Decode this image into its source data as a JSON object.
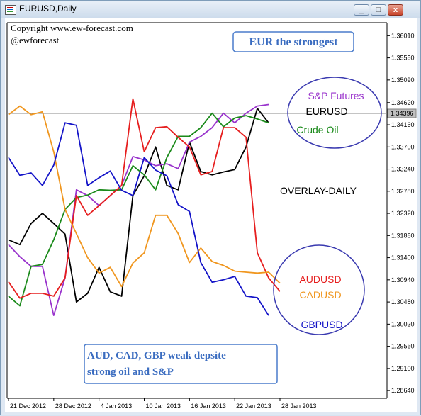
{
  "window": {
    "title": "EURUSD,Daily",
    "buttons": [
      "_",
      "□",
      "x"
    ]
  },
  "annotations": {
    "copyright": "Copyright www.ew-forecast.com",
    "handle": "@ewforecast",
    "headline": "EUR the strongest",
    "overlay_label": "OVERLAY-DAILY",
    "bottom_note_line1": "AUD, CAD, GBP weak depsite",
    "bottom_note_line2": "strong oil and S&P",
    "current_price": "1.34396"
  },
  "chart_data": {
    "type": "line",
    "title": "",
    "ylim": [
      1.2848,
      1.3628
    ],
    "x": [
      "21 Dec 2012",
      "24 Dec 2012",
      "26 Dec 2012",
      "27 Dec 2012",
      "28 Dec 2012",
      "31 Dec 2012",
      "2 Jan 2013",
      "3 Jan 2013",
      "4 Jan 2013",
      "7 Jan 2013",
      "8 Jan 2013",
      "9 Jan 2013",
      "10 Jan 2013",
      "11 Jan 2013",
      "14 Jan 2013",
      "15 Jan 2013",
      "16 Jan 2013",
      "17 Jan 2013",
      "18 Jan 2013",
      "21 Jan 2013",
      "22 Jan 2013",
      "23 Jan 2013",
      "24 Jan 2013",
      "25 Jan 2013",
      "28 Jan 2013"
    ],
    "x_tick_labels": [
      "21 Dec 2012",
      "28 Dec 2012",
      "4 Jan 2013",
      "10 Jan 2013",
      "16 Jan 2013",
      "22 Jan 2013",
      "28 Jan 2013"
    ],
    "y_ticks": [
      "1.36010",
      "1.35550",
      "1.35090",
      "1.34620",
      "1.34160",
      "1.33700",
      "1.33240",
      "1.32780",
      "1.32320",
      "1.31860",
      "1.31400",
      "1.30940",
      "1.30480",
      "1.30020",
      "1.29560",
      "1.29100",
      "1.28640"
    ],
    "current_price_line": 1.34396,
    "grid": false,
    "series": [
      {
        "name": "EURUSD",
        "color": "#000000",
        "values": [
          1.3177,
          1.3167,
          1.3211,
          1.3232,
          1.3211,
          1.3189,
          1.3048,
          1.3066,
          1.312,
          1.3069,
          1.306,
          1.3269,
          1.331,
          1.337,
          1.329,
          1.3281,
          1.338,
          1.3319,
          1.3312,
          1.3318,
          1.3323,
          1.337,
          1.345,
          1.342,
          null
        ]
      },
      {
        "name": "S&P Futures",
        "color": "#9933cc",
        "values": [
          1.3167,
          1.3142,
          1.3122,
          1.3122,
          1.302,
          1.3098,
          1.3281,
          1.3269,
          1.3248,
          1.3269,
          1.329,
          1.335,
          1.3343,
          1.3331,
          1.3335,
          1.3325,
          1.338,
          1.3392,
          1.341,
          1.344,
          1.342,
          1.344,
          1.3455,
          1.3458,
          null
        ]
      },
      {
        "name": "Crude Oil",
        "color": "#1a8a1a",
        "values": [
          1.306,
          1.304,
          1.3122,
          1.3126,
          1.3177,
          1.324,
          1.3265,
          1.327,
          1.3281,
          1.328,
          1.3281,
          1.3331,
          1.3312,
          1.3281,
          1.3348,
          1.3392,
          1.3392,
          1.341,
          1.344,
          1.3412,
          1.343,
          1.3435,
          1.3428,
          1.342,
          null
        ]
      },
      {
        "name": "AUDUSD",
        "color": "#e61e1e",
        "values": [
          1.309,
          1.3056,
          1.3066,
          1.3066,
          1.306,
          1.3098,
          1.3269,
          1.3228,
          1.3248,
          1.3269,
          1.329,
          1.347,
          1.336,
          1.341,
          1.3412,
          1.339,
          1.337,
          1.3312,
          1.3319,
          1.341,
          1.341,
          1.339,
          1.315,
          1.3098,
          1.307
        ]
      },
      {
        "name": "CADUSD",
        "color": "#f0961e",
        "values": [
          1.3437,
          1.3455,
          1.3437,
          1.3443,
          1.336,
          1.324,
          1.319,
          1.314,
          1.3108,
          1.312,
          1.308,
          1.3129,
          1.315,
          1.3228,
          1.3228,
          1.319,
          1.313,
          1.316,
          1.3132,
          1.3124,
          1.3112,
          1.311,
          1.3108,
          1.311,
          1.3087
        ]
      },
      {
        "name": "GBPUSD",
        "color": "#1414c8",
        "values": [
          1.3348,
          1.3311,
          1.3316,
          1.329,
          1.3332,
          1.342,
          1.3415,
          1.329,
          1.3306,
          1.332,
          1.328,
          1.3269,
          1.3348,
          1.3322,
          1.331,
          1.325,
          1.3236,
          1.313,
          1.3089,
          1.3094,
          1.3101,
          1.306,
          1.3057,
          1.302,
          null
        ]
      }
    ],
    "legend_circles": [
      {
        "position": "top-right",
        "entries": [
          "S&P Futures",
          "EURUSD",
          "Crude Oil"
        ]
      },
      {
        "position": "bottom-right",
        "entries": [
          "AUDUSD",
          "CADUSD",
          "GBPUSD"
        ]
      }
    ]
  },
  "colors": {
    "circle": "#3a3ab0",
    "note_text": "#3a6cc0",
    "note_border": "#4a7ccc"
  }
}
